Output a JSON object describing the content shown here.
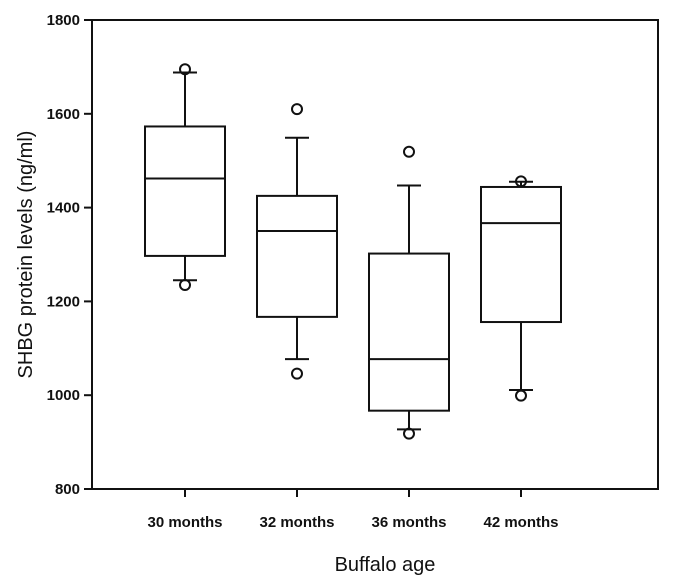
{
  "chart_data": {
    "type": "box",
    "title": "",
    "xlabel": "Buffalo age",
    "ylabel": "SHBG protein levels (ng/ml)",
    "ylim": [
      800,
      1800
    ],
    "yticks": [
      "800",
      "1000",
      "1200",
      "1400",
      "1600",
      "1800"
    ],
    "grid": false,
    "categories": [
      "30 months",
      "32 months",
      "36 months",
      "42 months"
    ],
    "boxes": [
      {
        "q1": 1297,
        "median": 1462,
        "q3": 1573,
        "whisker_low": 1245,
        "whisker_high": 1688,
        "outliers": [
          1695,
          1235
        ]
      },
      {
        "q1": 1167,
        "median": 1350,
        "q3": 1425,
        "whisker_low": 1077,
        "whisker_high": 1549,
        "outliers": [
          1610,
          1046
        ]
      },
      {
        "q1": 967,
        "median": 1077,
        "q3": 1302,
        "whisker_low": 927,
        "whisker_high": 1447,
        "outliers": [
          1519,
          918
        ]
      },
      {
        "q1": 1156,
        "median": 1367,
        "q3": 1444,
        "whisker_low": 1011,
        "whisker_high": 1455,
        "outliers": [
          1456,
          999
        ]
      }
    ]
  }
}
